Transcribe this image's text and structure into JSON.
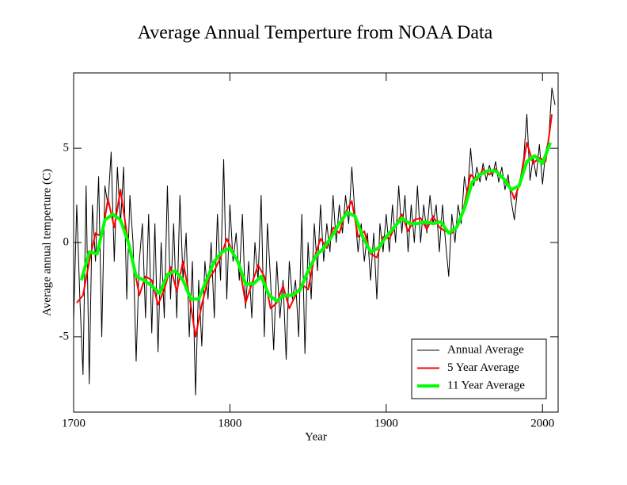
{
  "chart_data": {
    "type": "line",
    "title": "Average Annual Temperture from NOAA Data",
    "x_label": "Year",
    "y_label": "Average annual temperture (C)",
    "xlim": [
      1700,
      2010
    ],
    "xticks": [
      1700,
      1800,
      1900,
      2000
    ],
    "ylim": [
      -9,
      9
    ],
    "yticks": [
      -5,
      0,
      5
    ],
    "legend": "lower right",
    "series": [
      {
        "name": "Annual Average",
        "color": "#000000",
        "x": [
          1700,
          1702,
          1704,
          1706,
          1708,
          1710,
          1712,
          1714,
          1716,
          1718,
          1720,
          1722,
          1724,
          1726,
          1728,
          1730,
          1732,
          1734,
          1736,
          1738,
          1740,
          1742,
          1744,
          1746,
          1748,
          1750,
          1752,
          1754,
          1756,
          1758,
          1760,
          1762,
          1764,
          1766,
          1768,
          1770,
          1772,
          1774,
          1776,
          1778,
          1780,
          1782,
          1784,
          1786,
          1788,
          1790,
          1792,
          1794,
          1796,
          1798,
          1800,
          1802,
          1804,
          1806,
          1808,
          1810,
          1812,
          1814,
          1816,
          1818,
          1820,
          1822,
          1824,
          1826,
          1828,
          1830,
          1832,
          1834,
          1836,
          1838,
          1840,
          1842,
          1844,
          1846,
          1848,
          1850,
          1852,
          1854,
          1856,
          1858,
          1860,
          1862,
          1864,
          1866,
          1868,
          1870,
          1872,
          1874,
          1876,
          1878,
          1880,
          1882,
          1884,
          1886,
          1888,
          1890,
          1892,
          1894,
          1896,
          1898,
          1900,
          1902,
          1904,
          1906,
          1908,
          1910,
          1912,
          1914,
          1916,
          1918,
          1920,
          1922,
          1924,
          1926,
          1928,
          1930,
          1932,
          1934,
          1936,
          1938,
          1940,
          1942,
          1944,
          1946,
          1948,
          1950,
          1952,
          1954,
          1956,
          1958,
          1960,
          1962,
          1964,
          1966,
          1968,
          1970,
          1972,
          1974,
          1976,
          1978,
          1980,
          1982,
          1984,
          1986,
          1988,
          1990,
          1992,
          1994,
          1996,
          1998,
          2000,
          2002,
          2004,
          2006,
          2008
        ],
        "values": [
          -4.2,
          2,
          -3,
          -7,
          3,
          -7.5,
          2,
          -1,
          3.5,
          -5,
          3,
          2,
          4.8,
          -1,
          4,
          1,
          4,
          -3,
          2.5,
          0,
          -6.3,
          -1,
          1,
          -4,
          1.5,
          -4.8,
          1,
          -5.8,
          0,
          -4,
          3,
          -3,
          1,
          -4,
          2.5,
          -2,
          0.5,
          -5,
          -1,
          -8.1,
          -2,
          -5.5,
          -1,
          -3,
          0,
          -4,
          1.5,
          -2,
          4.4,
          -3,
          2,
          -1,
          0.5,
          -2,
          1.5,
          -3.5,
          -1,
          -4,
          0,
          -2,
          2.5,
          -5,
          1,
          -2,
          -5.7,
          -1,
          -4,
          -2,
          -6.2,
          -1,
          -3,
          -2,
          -5,
          1.5,
          -5.9,
          0,
          -3,
          1,
          -1.5,
          2,
          -1,
          1,
          -0.5,
          2.5,
          0,
          2,
          0.5,
          2.5,
          1,
          4,
          1.5,
          -0.5,
          1,
          -1,
          0.5,
          -2,
          0.5,
          -3,
          1,
          -0.5,
          1.5,
          -0.5,
          2,
          0,
          3,
          0.5,
          2.5,
          -0.5,
          2,
          0,
          3,
          0,
          2,
          0.5,
          2.5,
          1,
          2,
          -0.5,
          2,
          0,
          -1.8,
          1.5,
          0,
          2,
          1,
          3.5,
          2.5,
          5,
          3,
          4,
          3.2,
          4.2,
          3.3,
          4.1,
          3.5,
          4.3,
          3.2,
          4,
          2.8,
          3.6,
          2.2,
          1.2,
          2.8,
          3.5,
          4.5,
          6.8,
          3.3,
          4.5,
          3.5,
          5.2,
          3.1,
          4.8,
          5.5,
          8.2,
          7.3
        ]
      },
      {
        "name": "5 Year Average",
        "color": "#ff0000",
        "x": [
          1702,
          1706,
          1710,
          1714,
          1718,
          1722,
          1726,
          1730,
          1734,
          1738,
          1742,
          1746,
          1750,
          1754,
          1758,
          1762,
          1766,
          1770,
          1774,
          1778,
          1782,
          1786,
          1790,
          1794,
          1798,
          1802,
          1806,
          1810,
          1814,
          1818,
          1822,
          1826,
          1830,
          1834,
          1838,
          1842,
          1846,
          1850,
          1854,
          1858,
          1862,
          1866,
          1870,
          1874,
          1878,
          1882,
          1886,
          1890,
          1894,
          1898,
          1902,
          1906,
          1910,
          1914,
          1918,
          1922,
          1926,
          1930,
          1934,
          1938,
          1942,
          1946,
          1950,
          1954,
          1958,
          1962,
          1966,
          1970,
          1974,
          1978,
          1982,
          1986,
          1990,
          1994,
          1998,
          2002,
          2006
        ],
        "values": [
          -3.2,
          -2.8,
          -1,
          0.5,
          0.3,
          2.3,
          0.8,
          2.8,
          0.5,
          -1,
          -2.8,
          -1.8,
          -2,
          -3.3,
          -2.5,
          -1.3,
          -2.6,
          -1,
          -2.8,
          -5,
          -3.3,
          -2,
          -1.5,
          -0.8,
          0.2,
          -0.5,
          -1.2,
          -3.2,
          -2.2,
          -1.2,
          -1.8,
          -3.5,
          -3.2,
          -2.3,
          -3.5,
          -2.8,
          -2.2,
          -2.5,
          -0.8,
          0.2,
          -0.3,
          0.8,
          0.5,
          1.6,
          2.2,
          0.3,
          0.6,
          -0.6,
          -0.8,
          0.3,
          0.2,
          0.9,
          1.5,
          0.6,
          1.2,
          1.3,
          0.7,
          1.4,
          0.8,
          0.6,
          0.5,
          0.9,
          2,
          3.6,
          3.3,
          3.9,
          3.6,
          3.9,
          3.5,
          3.2,
          2.3,
          3.3,
          5.3,
          4.2,
          4.5,
          4.3,
          6.8
        ]
      },
      {
        "name": "11 Year Average",
        "color": "#00ff00",
        "x": [
          1705,
          1710,
          1715,
          1720,
          1725,
          1730,
          1735,
          1740,
          1745,
          1750,
          1755,
          1760,
          1765,
          1770,
          1775,
          1780,
          1785,
          1790,
          1795,
          1800,
          1805,
          1810,
          1815,
          1820,
          1825,
          1830,
          1835,
          1840,
          1845,
          1850,
          1855,
          1860,
          1865,
          1870,
          1875,
          1880,
          1885,
          1890,
          1895,
          1900,
          1905,
          1910,
          1915,
          1920,
          1925,
          1930,
          1935,
          1940,
          1945,
          1950,
          1955,
          1960,
          1965,
          1970,
          1975,
          1980,
          1985,
          1990,
          1995,
          2000,
          2005
        ],
        "values": [
          -2,
          -0.5,
          -0.6,
          1.2,
          1.5,
          1.2,
          0,
          -1.8,
          -2,
          -2.3,
          -2.7,
          -1.7,
          -1.5,
          -2,
          -3,
          -3,
          -2,
          -1,
          -0.5,
          -0.3,
          -1,
          -2.2,
          -2.2,
          -1.8,
          -2.8,
          -3.1,
          -2.8,
          -2.8,
          -2.5,
          -1.5,
          -0.7,
          -0.3,
          0.3,
          1,
          1.6,
          1.4,
          0.3,
          -0.5,
          -0.3,
          0.3,
          0.8,
          1.3,
          1,
          1,
          1.1,
          1,
          1.1,
          0.5,
          0.8,
          1.8,
          3.2,
          3.6,
          3.8,
          3.8,
          3.4,
          2.8,
          3,
          4.3,
          4.6,
          4.2,
          5.3
        ]
      }
    ]
  }
}
